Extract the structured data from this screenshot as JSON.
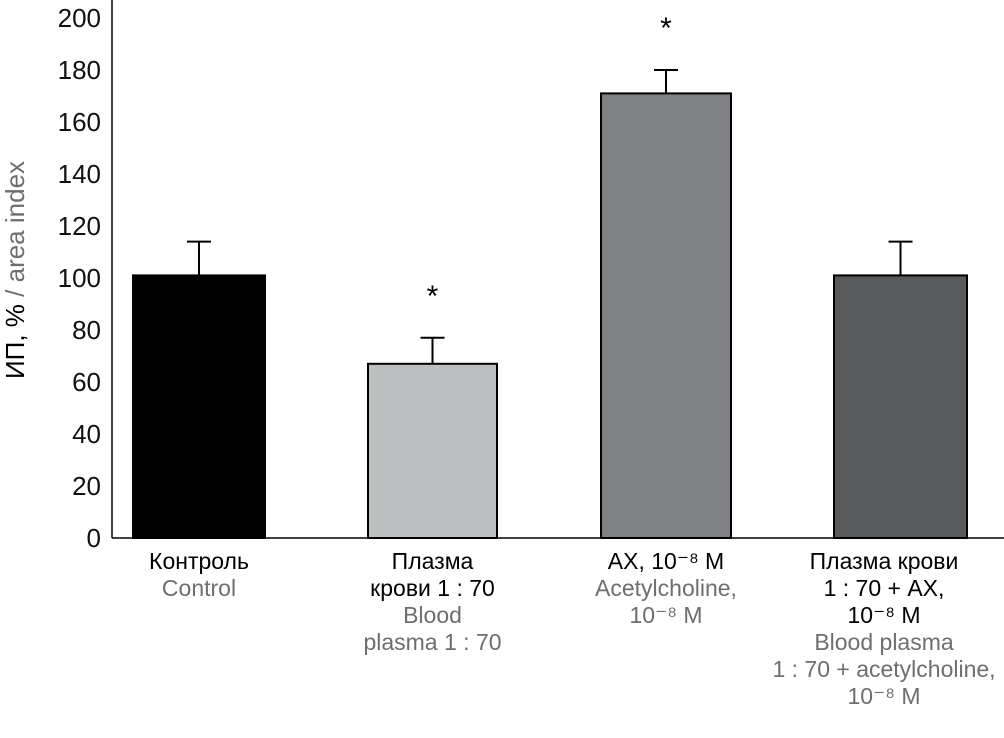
{
  "chart_data": {
    "type": "bar",
    "title": "",
    "ylabel_ru": "ИП, %",
    "ylabel_en": " / area index",
    "xlabel": "",
    "ylim": [
      0,
      200
    ],
    "yticks": [
      "0",
      "20",
      "40",
      "60",
      "80",
      "100",
      "120",
      "140",
      "160",
      "180",
      "200"
    ],
    "grid": false,
    "categories": [
      {
        "ru": [
          "Контроль"
        ],
        "en": [
          "Control"
        ]
      },
      {
        "ru": [
          "Плазма",
          "крови 1 : 70"
        ],
        "en": [
          "Blood",
          "plasma  1 : 70"
        ]
      },
      {
        "ru": [
          "АХ, 10⁻⁸ М"
        ],
        "en": [
          "Acetylcholine,",
          "10⁻⁸ M"
        ]
      },
      {
        "ru": [
          "Плазма крови",
          "1 : 70 + АХ,",
          "10⁻⁸ М"
        ],
        "en": [
          "Blood plasma",
          "1 : 70 + acetylcholine,",
          "10⁻⁸ M"
        ]
      }
    ],
    "values": [
      101,
      67,
      171,
      101
    ],
    "errors": [
      13,
      10,
      9,
      13
    ],
    "significance": [
      "",
      "*",
      "*",
      ""
    ],
    "colors": [
      "#000000",
      "#bcbec0",
      "#808184",
      "#58595b"
    ],
    "label_color_en": "#6d6e71"
  }
}
